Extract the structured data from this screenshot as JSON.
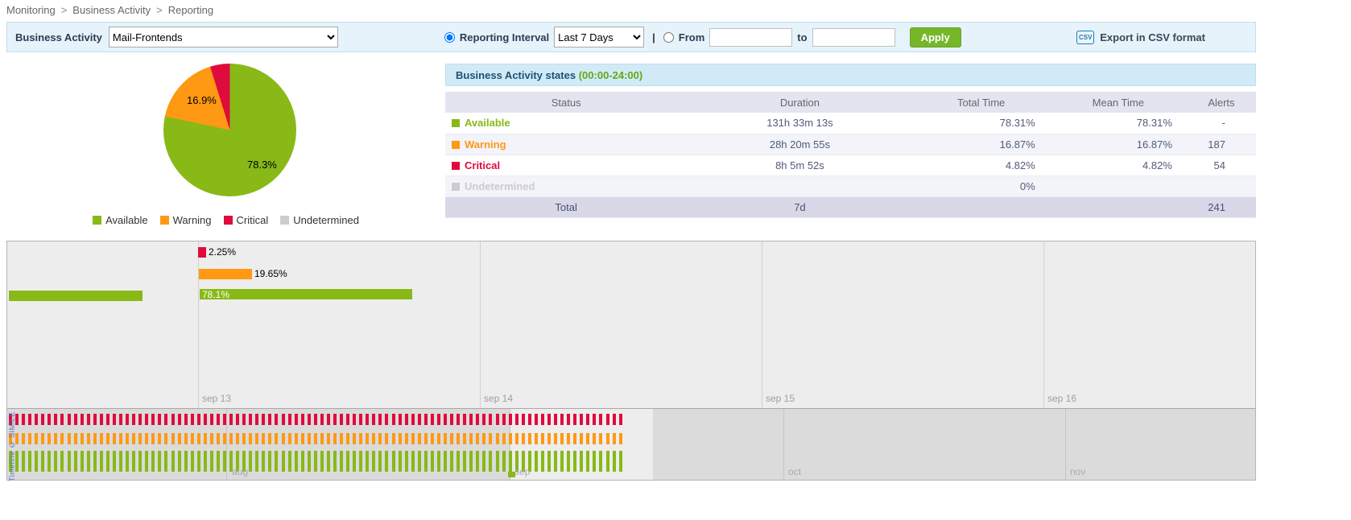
{
  "colors": {
    "available": "#88B917",
    "warning": "#FF9913",
    "critical": "#E00B3D",
    "undetermined": "#CCCCCC"
  },
  "breadcrumb": {
    "separator": ">",
    "items": [
      "Monitoring",
      "Business Activity",
      "Reporting"
    ]
  },
  "toolbar": {
    "business_activity_label": "Business Activity",
    "business_activity_value": "Mail-Frontends",
    "reporting_interval_label": "Reporting Interval",
    "reporting_interval_value": "Last 7 Days",
    "pipe": "|",
    "from_label": "From",
    "to_label": "to",
    "from_value": "",
    "to_value": "",
    "apply_label": "Apply",
    "csv_icon_text": "CSV",
    "export_label": "Export in CSV format"
  },
  "pie": {
    "slices": [
      {
        "label": "Available",
        "value": 78.3,
        "display": "78.3%",
        "color": "#88B917"
      },
      {
        "label": "Warning",
        "value": 16.9,
        "display": "16.9%",
        "color": "#FF9913"
      },
      {
        "label": "Critical",
        "value": 4.8,
        "display": "",
        "color": "#E00B3D"
      }
    ],
    "legend": [
      {
        "label": "Available",
        "color": "#88B917"
      },
      {
        "label": "Warning",
        "color": "#FF9913"
      },
      {
        "label": "Critical",
        "color": "#E00B3D"
      },
      {
        "label": "Undetermined",
        "color": "#CCCCCC"
      }
    ]
  },
  "states_table": {
    "title": "Business Activity states",
    "title_time": "(00:00-24:00)",
    "columns": [
      "Status",
      "Duration",
      "Total Time",
      "Mean Time",
      "Alerts"
    ],
    "rows": [
      {
        "status": "Available",
        "color": "#88B917",
        "duration": "131h 33m 13s",
        "total_time": "78.31%",
        "mean_time": "78.31%",
        "alerts": "-"
      },
      {
        "status": "Warning",
        "color": "#FF9913",
        "duration": "28h 20m 55s",
        "total_time": "16.87%",
        "mean_time": "16.87%",
        "alerts": "187"
      },
      {
        "status": "Critical",
        "color": "#E00B3D",
        "duration": "8h 5m 52s",
        "total_time": "4.82%",
        "mean_time": "4.82%",
        "alerts": "54"
      },
      {
        "status": "Undetermined",
        "color": "#CCCCCC",
        "duration": "",
        "total_time": "0%",
        "mean_time": "",
        "alerts": ""
      }
    ],
    "total_row": {
      "label": "Total",
      "duration": "7d",
      "total_time": "",
      "mean_time": "",
      "alerts": "241"
    }
  },
  "timeline": {
    "bars": [
      {
        "name": "previous-available",
        "label": "",
        "color": "#88B917"
      },
      {
        "name": "critical",
        "label": "2.25%",
        "color": "#E00B3D"
      },
      {
        "name": "warning",
        "label": "19.65%",
        "color": "#FF9913"
      },
      {
        "name": "available",
        "label": "78.1%",
        "color": "#88B917"
      }
    ],
    "main_dates": [
      "sep 13",
      "sep 14",
      "sep 15",
      "sep 16"
    ],
    "overview_dates": [
      "aug",
      "sep",
      "oct",
      "nov"
    ],
    "credit": "Timeline © SIMILE"
  }
}
